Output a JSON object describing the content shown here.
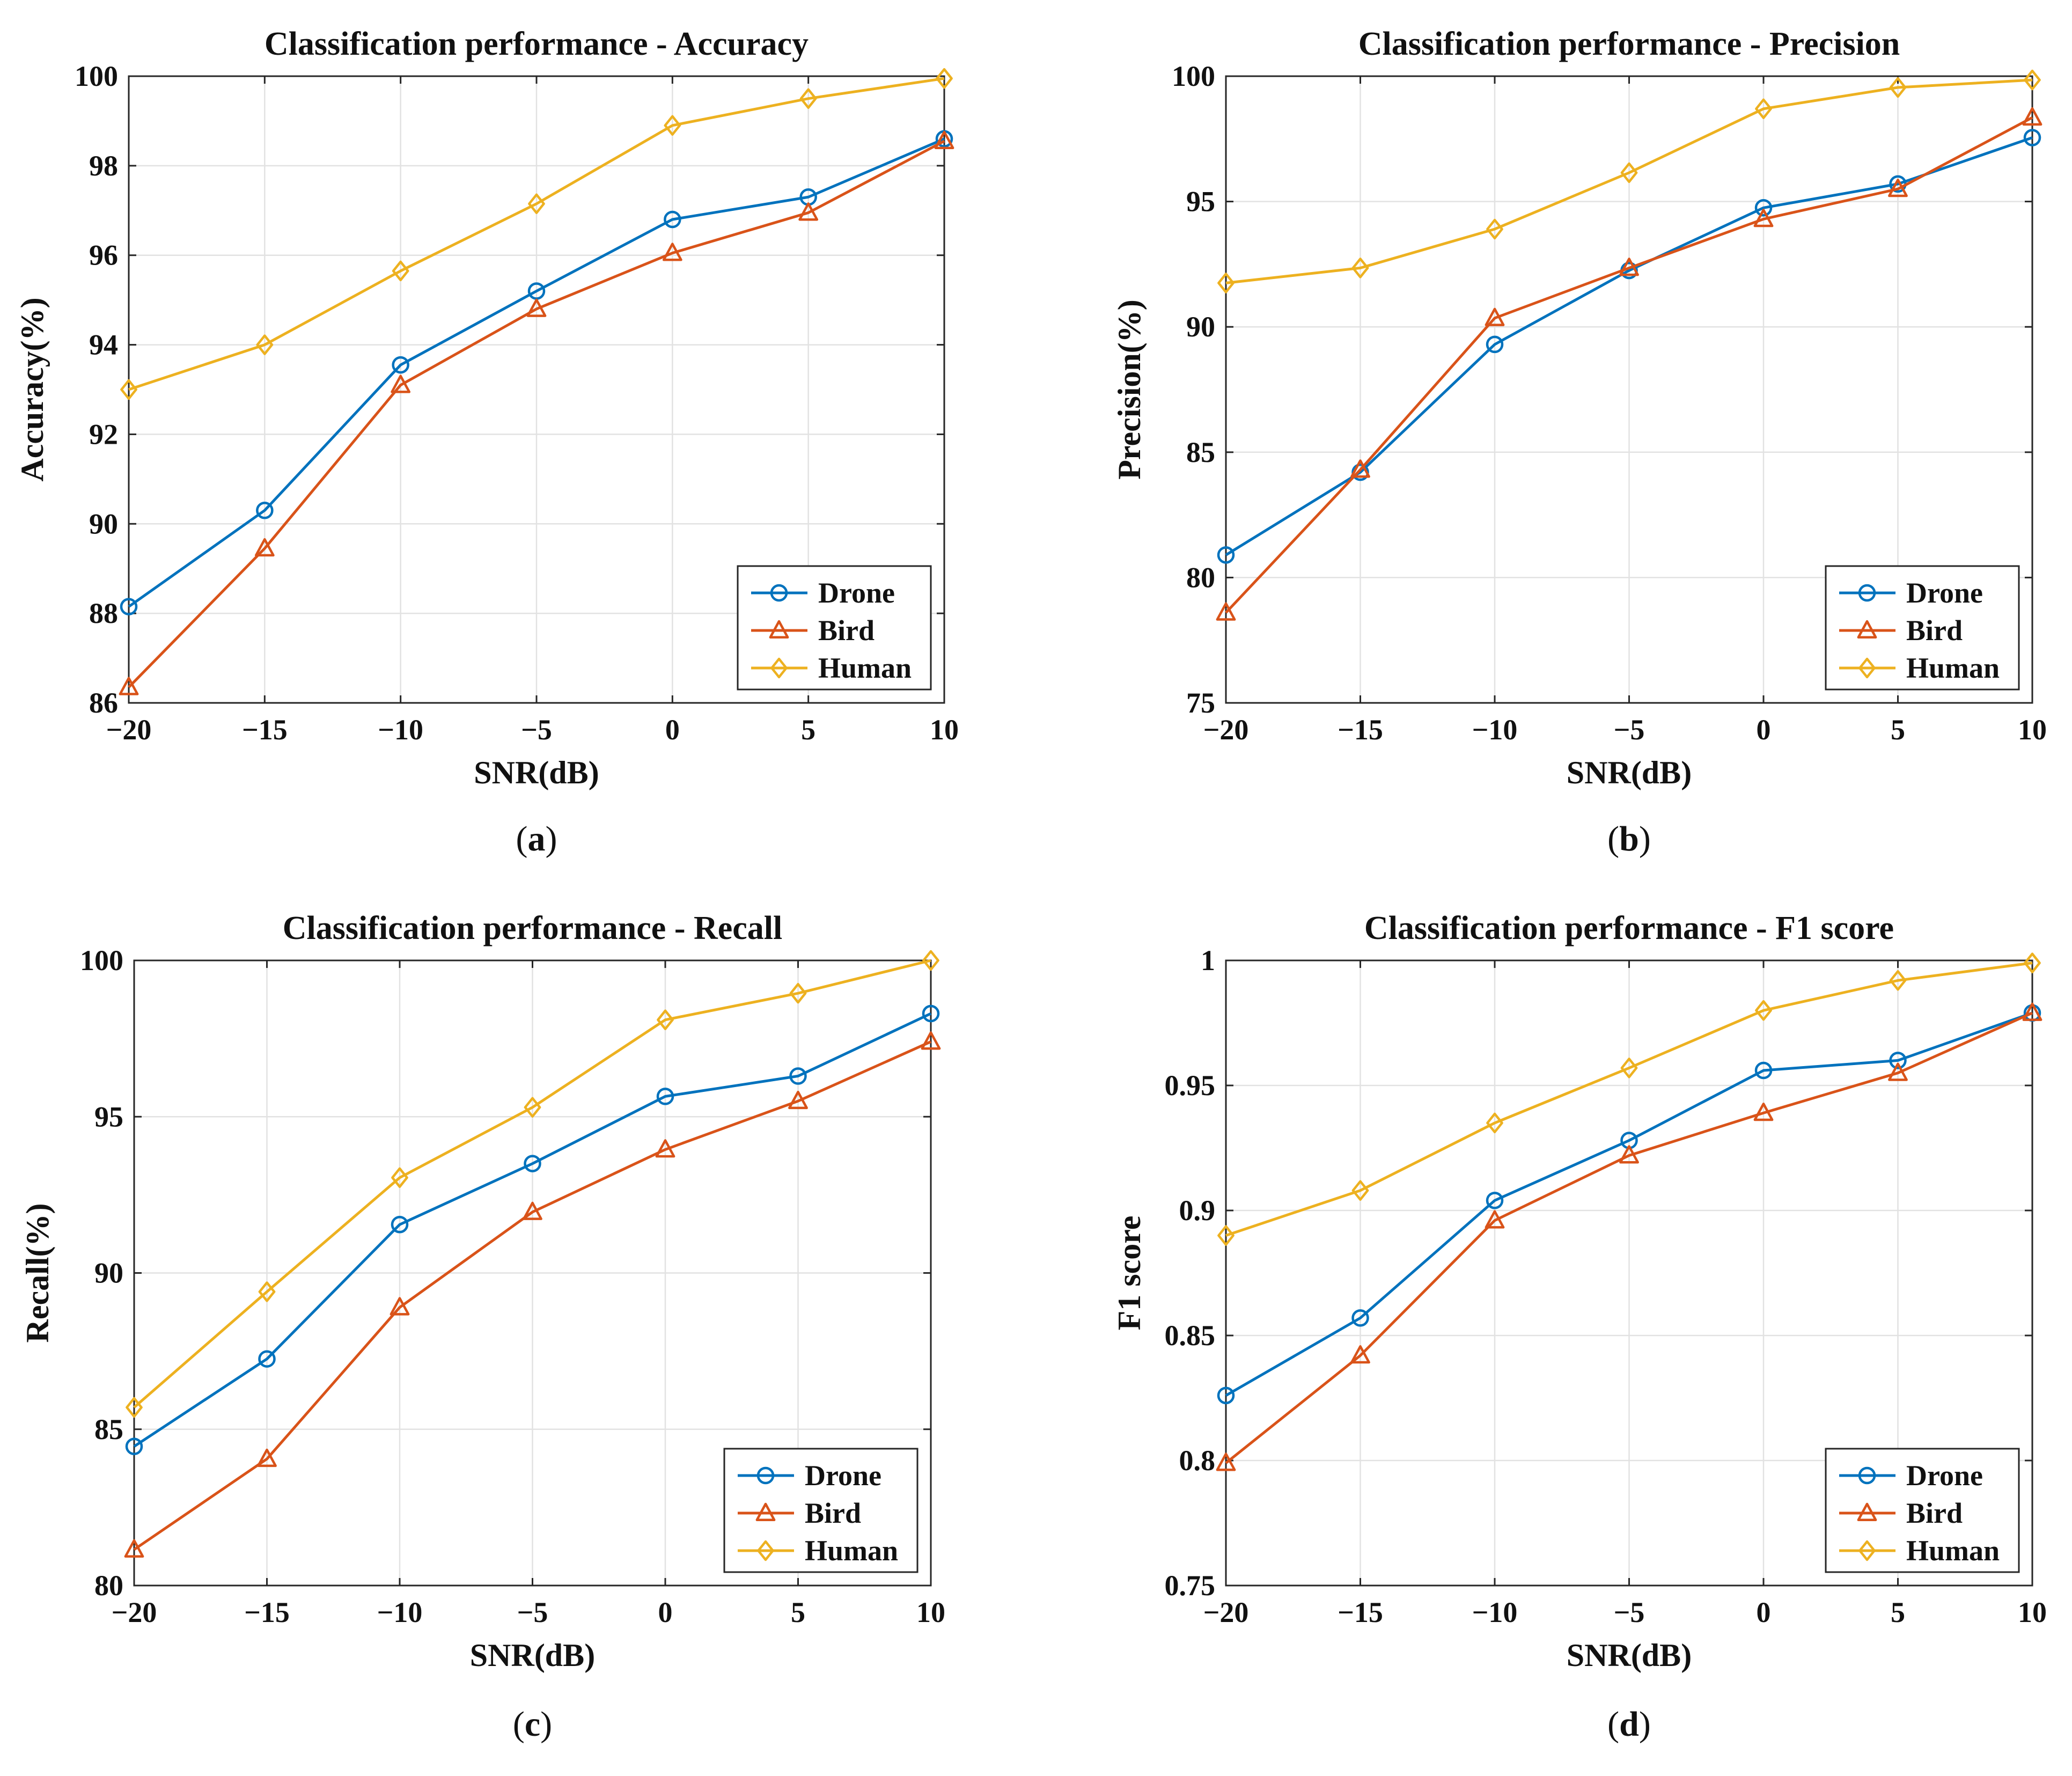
{
  "chart_data": [
    {
      "type": "line",
      "panel_label": "a",
      "title": "Classification performance - Accuracy",
      "xlabel": "SNR(dB)",
      "ylabel": "Accuracy(%)",
      "x": [
        -20,
        -15,
        -10,
        -5,
        0,
        5,
        10
      ],
      "xticks": [
        -20,
        -15,
        -10,
        -5,
        0,
        5,
        10
      ],
      "xtick_labels": [
        "−20",
        "−15",
        "−10",
        "−5",
        "0",
        "5",
        "10"
      ],
      "xlim": [
        -20,
        10
      ],
      "ylim": [
        86,
        100
      ],
      "yticks": [
        86,
        88,
        90,
        92,
        94,
        96,
        98,
        100
      ],
      "ytick_labels": [
        "86",
        "88",
        "90",
        "92",
        "94",
        "96",
        "98",
        "100"
      ],
      "grid": true,
      "legend_position": "bottom-right",
      "series": [
        {
          "name": "Drone",
          "color": "#0072BD",
          "marker": "circle",
          "values": [
            88.15,
            90.3,
            93.55,
            95.2,
            96.8,
            97.3,
            98.6
          ]
        },
        {
          "name": "Bird",
          "color": "#D95319",
          "marker": "triangle",
          "values": [
            86.35,
            89.45,
            93.1,
            94.8,
            96.05,
            96.95,
            98.55
          ]
        },
        {
          "name": "Human",
          "color": "#EDB120",
          "marker": "diamond",
          "values": [
            93.0,
            94.0,
            95.65,
            97.15,
            98.9,
            99.5,
            99.95
          ]
        }
      ]
    },
    {
      "type": "line",
      "panel_label": "b",
      "title": "Classification performance - Precision",
      "xlabel": "SNR(dB)",
      "ylabel": "Precision(%)",
      "x": [
        -20,
        -15,
        -10,
        -5,
        0,
        5,
        10
      ],
      "xticks": [
        -20,
        -15,
        -10,
        -5,
        0,
        5,
        10
      ],
      "xtick_labels": [
        "−20",
        "−15",
        "−10",
        "−5",
        "0",
        "5",
        "10"
      ],
      "xlim": [
        -20,
        10
      ],
      "ylim": [
        75,
        100
      ],
      "yticks": [
        75,
        80,
        85,
        90,
        95,
        100
      ],
      "ytick_labels": [
        "75",
        "80",
        "85",
        "90",
        "95",
        "100"
      ],
      "grid": true,
      "legend_position": "bottom-right",
      "series": [
        {
          "name": "Drone",
          "color": "#0072BD",
          "marker": "circle",
          "values": [
            80.9,
            84.2,
            89.3,
            92.25,
            94.75,
            95.7,
            97.55
          ]
        },
        {
          "name": "Bird",
          "color": "#D95319",
          "marker": "triangle",
          "values": [
            78.6,
            84.3,
            90.35,
            92.35,
            94.3,
            95.5,
            98.35
          ]
        },
        {
          "name": "Human",
          "color": "#EDB120",
          "marker": "diamond",
          "values": [
            91.75,
            92.35,
            93.9,
            96.15,
            98.7,
            99.55,
            99.85
          ]
        }
      ]
    },
    {
      "type": "line",
      "panel_label": "c",
      "title": "Classification performance - Recall",
      "xlabel": "SNR(dB)",
      "ylabel": "Recall(%)",
      "x": [
        -20,
        -15,
        -10,
        -5,
        0,
        5,
        10
      ],
      "xticks": [
        -20,
        -15,
        -10,
        -5,
        0,
        5,
        10
      ],
      "xtick_labels": [
        "−20",
        "−15",
        "−10",
        "−5",
        "0",
        "5",
        "10"
      ],
      "xlim": [
        -20,
        10
      ],
      "ylim": [
        80,
        100
      ],
      "yticks": [
        80,
        85,
        90,
        95,
        100
      ],
      "ytick_labels": [
        "80",
        "85",
        "90",
        "95",
        "100"
      ],
      "grid": true,
      "legend_position": "bottom-right",
      "series": [
        {
          "name": "Drone",
          "color": "#0072BD",
          "marker": "circle",
          "values": [
            84.45,
            87.25,
            91.55,
            93.5,
            95.65,
            96.3,
            98.3
          ]
        },
        {
          "name": "Bird",
          "color": "#D95319",
          "marker": "triangle",
          "values": [
            81.15,
            84.05,
            88.9,
            91.95,
            93.95,
            95.5,
            97.4
          ]
        },
        {
          "name": "Human",
          "color": "#EDB120",
          "marker": "diamond",
          "values": [
            85.7,
            89.4,
            93.05,
            95.3,
            98.1,
            98.95,
            100.0
          ]
        }
      ]
    },
    {
      "type": "line",
      "panel_label": "d",
      "title": "Classification performance - F1 score",
      "xlabel": "SNR(dB)",
      "ylabel": "F1 score",
      "x": [
        -20,
        -15,
        -10,
        -5,
        0,
        5,
        10
      ],
      "xticks": [
        -20,
        -15,
        -10,
        -5,
        0,
        5,
        10
      ],
      "xtick_labels": [
        "−20",
        "−15",
        "−10",
        "−5",
        "0",
        "5",
        "10"
      ],
      "xlim": [
        -20,
        10
      ],
      "ylim": [
        0.75,
        1
      ],
      "yticks": [
        0.75,
        0.8,
        0.85,
        0.9,
        0.95,
        1
      ],
      "ytick_labels": [
        "0.75",
        "0.8",
        "0.85",
        "0.9",
        "0.95",
        "1"
      ],
      "grid": true,
      "legend_position": "bottom-right",
      "series": [
        {
          "name": "Drone",
          "color": "#0072BD",
          "marker": "circle",
          "values": [
            0.826,
            0.857,
            0.904,
            0.928,
            0.956,
            0.96,
            0.979
          ]
        },
        {
          "name": "Bird",
          "color": "#D95319",
          "marker": "triangle",
          "values": [
            0.799,
            0.842,
            0.896,
            0.922,
            0.939,
            0.955,
            0.979
          ]
        },
        {
          "name": "Human",
          "color": "#EDB120",
          "marker": "diamond",
          "values": [
            0.89,
            0.908,
            0.935,
            0.957,
            0.98,
            0.992,
            0.999
          ]
        }
      ]
    }
  ]
}
